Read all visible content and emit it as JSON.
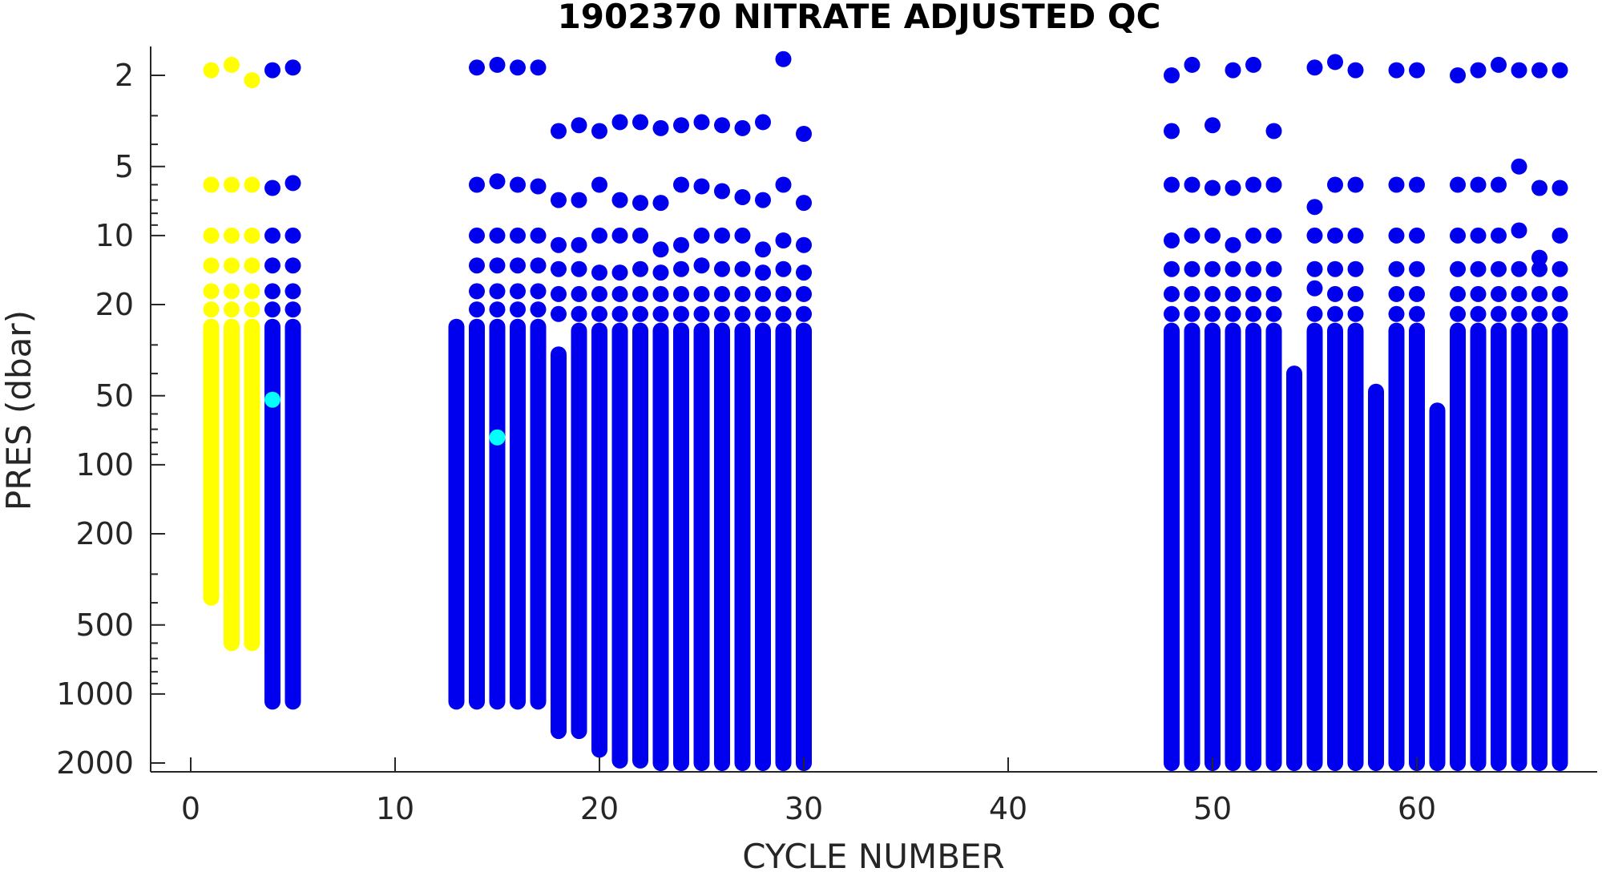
{
  "chart_data": {
    "type": "scatter",
    "title": "1902370  NITRATE ADJUSTED QC",
    "xlabel": "CYCLE NUMBER",
    "ylabel": "PRES (dbar)",
    "xlim": [
      -2,
      67.5
    ],
    "ylim": [
      1.6,
      2200
    ],
    "yscale": "log",
    "yreversed": true,
    "xticks": [
      0,
      10,
      20,
      30,
      40,
      50,
      60
    ],
    "yticks": [
      2,
      5,
      10,
      20,
      50,
      100,
      200,
      500,
      1000,
      2000
    ],
    "grid": false,
    "legend": "none",
    "colors": {
      "good": "#0000ee",
      "probably_good": "#00ffff",
      "probably_bad": "#ffff00"
    },
    "series": [
      {
        "flag": "probably_bad",
        "color": "#ffff00",
        "cycles": [
          {
            "x": 1,
            "top": [
              1.9,
              6,
              10,
              13.5,
              17.5,
              21
            ],
            "continuous_from": 25,
            "bottom": 380
          },
          {
            "x": 2,
            "top": [
              1.8,
              6,
              10,
              13.5,
              17.5,
              21
            ],
            "continuous_from": 25,
            "bottom": 600
          },
          {
            "x": 3,
            "top": [
              2.1,
              6,
              10,
              13.5,
              17.5,
              21
            ],
            "continuous_from": 25,
            "bottom": 600
          }
        ]
      },
      {
        "flag": "good",
        "color": "#0000ee",
        "cycles": [
          {
            "x": 4,
            "top": [
              1.9,
              6.2,
              10,
              13.5,
              17.5,
              21
            ],
            "continuous_from": 25,
            "bottom": 1080
          },
          {
            "x": 5,
            "top": [
              1.85,
              5.9,
              10,
              13.5,
              17.5,
              21
            ],
            "continuous_from": 25,
            "bottom": 1080
          },
          {
            "x": 13,
            "top": [],
            "continuous_from": 25,
            "bottom": 1080
          },
          {
            "x": 14,
            "top": [
              1.85,
              6,
              10,
              13.5,
              17.5,
              21
            ],
            "continuous_from": 25,
            "bottom": 1080
          },
          {
            "x": 15,
            "top": [
              1.8,
              5.8,
              10,
              13.5,
              17.5,
              21
            ],
            "continuous_from": 25,
            "bottom": 1080
          },
          {
            "x": 16,
            "top": [
              1.85,
              6,
              10,
              13.5,
              17.5,
              21
            ],
            "continuous_from": 25,
            "bottom": 1080
          },
          {
            "x": 17,
            "top": [
              1.85,
              6.1,
              10,
              13.5,
              17.5,
              21
            ],
            "continuous_from": 25,
            "bottom": 1080
          },
          {
            "x": 18,
            "top": [
              3.5,
              7,
              11,
              14,
              18,
              22
            ],
            "continuous_from": 33,
            "bottom": 1450
          },
          {
            "x": 19,
            "top": [
              3.3,
              7,
              11,
              14,
              18,
              22
            ],
            "continuous_from": 26,
            "bottom": 1450
          },
          {
            "x": 20,
            "top": [
              3.5,
              6,
              10,
              14.5,
              18,
              22
            ],
            "continuous_from": 26,
            "bottom": 1750
          },
          {
            "x": 21,
            "top": [
              3.2,
              7,
              10,
              14.5,
              18,
              22
            ],
            "continuous_from": 26,
            "bottom": 1950
          },
          {
            "x": 22,
            "top": [
              3.2,
              7.2,
              10,
              14,
              18,
              22
            ],
            "continuous_from": 26,
            "bottom": 1950
          },
          {
            "x": 23,
            "top": [
              3.4,
              7.2,
              11.5,
              14.5,
              18,
              22
            ],
            "continuous_from": 26,
            "bottom": 2000
          },
          {
            "x": 24,
            "top": [
              3.3,
              6,
              11,
              14,
              18,
              22
            ],
            "continuous_from": 26,
            "bottom": 2000
          },
          {
            "x": 25,
            "top": [
              3.2,
              6.1,
              10,
              13.5,
              18,
              22
            ],
            "continuous_from": 26,
            "bottom": 2000
          },
          {
            "x": 26,
            "top": [
              3.3,
              6.4,
              10,
              14,
              18,
              22
            ],
            "continuous_from": 26,
            "bottom": 2000
          },
          {
            "x": 27,
            "top": [
              3.4,
              6.8,
              10,
              14,
              18,
              22
            ],
            "continuous_from": 26,
            "bottom": 2000
          },
          {
            "x": 28,
            "top": [
              3.2,
              7,
              11.5,
              14.5,
              18,
              22
            ],
            "continuous_from": 26,
            "bottom": 2000
          },
          {
            "x": 29,
            "top": [
              1.7,
              6,
              10.5,
              14,
              18,
              22
            ],
            "continuous_from": 26,
            "bottom": 2000
          },
          {
            "x": 30,
            "top": [
              3.6,
              7.2,
              11,
              14.5,
              18,
              22
            ],
            "continuous_from": 26,
            "bottom": 2000
          },
          {
            "x": 48,
            "top": [
              2,
              6,
              10.5,
              14,
              18,
              22
            ],
            "continuous_from": 26,
            "bottom": 2000,
            "extra": [
              3.5
            ]
          },
          {
            "x": 49,
            "top": [
              1.8,
              6,
              10,
              14,
              18,
              22
            ],
            "continuous_from": 26,
            "bottom": 2000
          },
          {
            "x": 50,
            "top": [
              3.3,
              6.2,
              10,
              14,
              18,
              22
            ],
            "continuous_from": 26,
            "bottom": 2000
          },
          {
            "x": 51,
            "top": [
              1.9,
              6.2,
              11,
              14,
              18,
              22
            ],
            "continuous_from": 26,
            "bottom": 2000
          },
          {
            "x": 52,
            "top": [
              1.8,
              6,
              10,
              14,
              18,
              22
            ],
            "continuous_from": 26,
            "bottom": 2000
          },
          {
            "x": 53,
            "top": [
              3.5,
              6,
              10,
              14,
              18,
              22
            ],
            "continuous_from": 26,
            "bottom": 2000
          },
          {
            "x": 54,
            "top": [],
            "continuous_from": 40,
            "bottom": 2000
          },
          {
            "x": 55,
            "top": [
              1.85,
              7.5,
              10,
              14,
              17,
              22
            ],
            "continuous_from": 26,
            "bottom": 2000
          },
          {
            "x": 56,
            "top": [
              1.75,
              6,
              10,
              14,
              18,
              22
            ],
            "continuous_from": 26,
            "bottom": 2000
          },
          {
            "x": 57,
            "top": [
              1.9,
              6,
              10,
              14,
              18,
              22
            ],
            "continuous_from": 26,
            "bottom": 2000
          },
          {
            "x": 58,
            "top": [],
            "continuous_from": 48,
            "bottom": 2000
          },
          {
            "x": 59,
            "top": [
              1.9,
              6,
              10,
              14,
              18,
              22
            ],
            "continuous_from": 26,
            "bottom": 2000
          },
          {
            "x": 60,
            "top": [
              1.9,
              6,
              10,
              14,
              18,
              22
            ],
            "continuous_from": 26,
            "bottom": 2000
          },
          {
            "x": 61,
            "top": [],
            "continuous_from": 58,
            "bottom": 2000
          },
          {
            "x": 62,
            "top": [
              2,
              6,
              10,
              14,
              18,
              22
            ],
            "continuous_from": 26,
            "bottom": 2000
          },
          {
            "x": 63,
            "top": [
              1.9,
              6,
              10,
              14,
              18,
              22
            ],
            "continuous_from": 26,
            "bottom": 2000
          },
          {
            "x": 64,
            "top": [
              1.8,
              6,
              10,
              14,
              18,
              22
            ],
            "continuous_from": 26,
            "bottom": 2000
          },
          {
            "x": 65,
            "top": [
              1.9,
              5,
              9.5,
              14,
              18,
              22
            ],
            "continuous_from": 26,
            "bottom": 2000
          },
          {
            "x": 66,
            "top": [
              1.9,
              6.2,
              12.5,
              14,
              18,
              22
            ],
            "continuous_from": 26,
            "bottom": 2000
          },
          {
            "x": 67,
            "top": [
              1.9,
              6.2,
              10,
              14,
              18,
              22
            ],
            "continuous_from": 26,
            "bottom": 2000
          }
        ]
      },
      {
        "flag": "probably_good",
        "color": "#00ffff",
        "points": [
          {
            "x": 4,
            "y": 52
          },
          {
            "x": 15,
            "y": 76
          }
        ]
      }
    ]
  }
}
